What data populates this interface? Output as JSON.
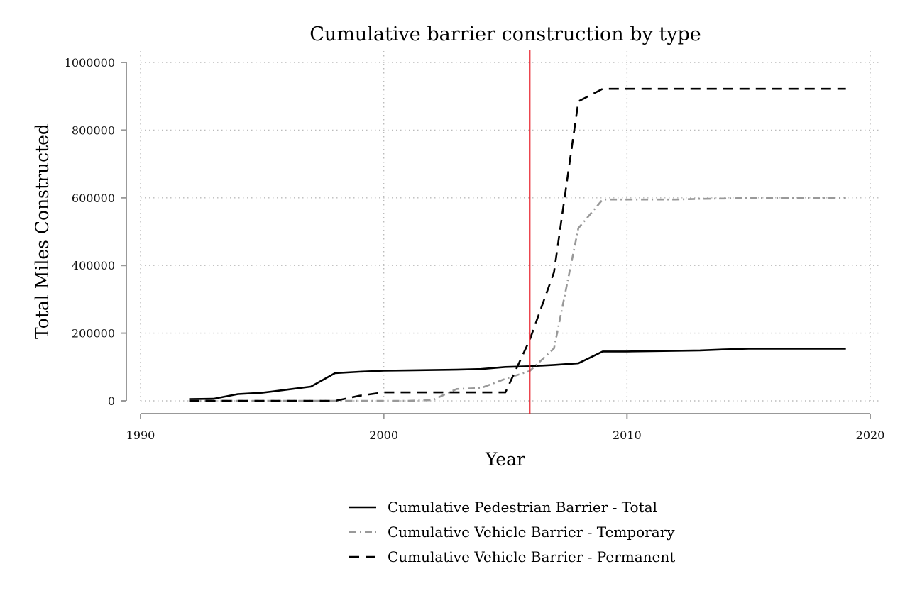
{
  "chart_data": {
    "type": "line",
    "title": "Cumulative barrier construction by type",
    "xlabel": "Year",
    "ylabel": "Total Miles Constructed",
    "xlim": [
      1990,
      2020
    ],
    "ylim": [
      0,
      1000000
    ],
    "xticks": [
      "1990",
      "2000",
      "2010",
      "2020"
    ],
    "yticks": [
      "0",
      "200000",
      "400000",
      "600000",
      "800000",
      "1000000"
    ],
    "grid": true,
    "legend_position": "bottom",
    "reference_line": {
      "x": 2006,
      "color": "#e8202a"
    },
    "x": [
      1992,
      1993,
      1994,
      1995,
      1996,
      1997,
      1998,
      1999,
      2000,
      2001,
      2002,
      2003,
      2004,
      2005,
      2006,
      2007,
      2008,
      2009,
      2010,
      2011,
      2012,
      2013,
      2014,
      2015,
      2016,
      2017,
      2018,
      2019
    ],
    "series": [
      {
        "name": "Cumulative Pedestrian Barrier - Total",
        "style": "solid",
        "color": "#000000",
        "values": [
          5000,
          6000,
          20000,
          24000,
          33000,
          42000,
          82000,
          86000,
          89000,
          90000,
          91000,
          92000,
          94000,
          100000,
          102000,
          106000,
          111000,
          146000,
          146000,
          147000,
          148000,
          149000,
          152000,
          154000,
          154000,
          154000,
          154000,
          154000
        ]
      },
      {
        "name": "Cumulative Vehicle Barrier - Temporary",
        "style": "dashdot",
        "color": "#999999",
        "values": [
          0,
          0,
          0,
          0,
          0,
          0,
          0,
          0,
          0,
          0,
          2000,
          35000,
          38000,
          65000,
          88000,
          155000,
          510000,
          595000,
          595000,
          595000,
          595000,
          597000,
          598000,
          600000,
          600000,
          600000,
          600000,
          600000
        ]
      },
      {
        "name": "Cumulative Vehicle Barrier - Permanent",
        "style": "dashed",
        "color": "#000000",
        "values": [
          0,
          0,
          0,
          0,
          0,
          0,
          0,
          15000,
          25000,
          25000,
          25000,
          25000,
          25000,
          25000,
          180000,
          380000,
          885000,
          922000,
          922000,
          922000,
          922000,
          922000,
          922000,
          922000,
          922000,
          922000,
          922000,
          922000
        ]
      }
    ]
  }
}
